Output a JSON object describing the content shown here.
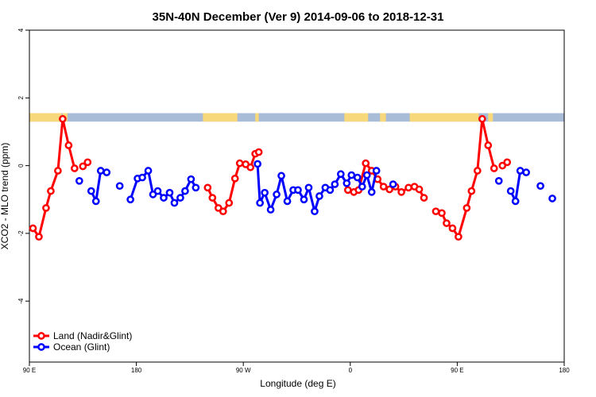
{
  "chart_data": {
    "type": "line",
    "title": "35N-40N December (Ver 9)   2014-09-06 to 2018-12-31",
    "xlabel": "Longitude (deg E)",
    "ylabel": "XCO2 - MLO trend (ppm)",
    "xlim": [
      90,
      540
    ],
    "ylim": [
      -5.8,
      4.0
    ],
    "x_ticks": [
      {
        "value": 90,
        "label": "90 E"
      },
      {
        "value": 180,
        "label": "180"
      },
      {
        "value": 270,
        "label": "90 W"
      },
      {
        "value": 360,
        "label": "0"
      },
      {
        "value": 450,
        "label": "90 E"
      },
      {
        "value": 540,
        "label": "180"
      }
    ],
    "y_ticks": [
      {
        "value": 4,
        "label": "4"
      },
      {
        "value": 2,
        "label": "2"
      },
      {
        "value": 0,
        "label": "0"
      },
      {
        "value": -2,
        "label": "-2"
      },
      {
        "value": -4,
        "label": "-4"
      }
    ],
    "legend_position": "bottom-left",
    "map_band": {
      "y_range": [
        1.3,
        1.55
      ],
      "ocean_color": "#a8bcd8",
      "land_color": "#f7d87a",
      "land_segments": [
        [
          90,
          117
        ],
        [
          105,
          117
        ],
        [
          118,
          122
        ],
        [
          236,
          265
        ],
        [
          280,
          283
        ],
        [
          355,
          375
        ],
        [
          385,
          390
        ],
        [
          410,
          468
        ],
        [
          462,
          468
        ],
        [
          476,
          480
        ]
      ]
    },
    "series": [
      {
        "name": "Land (Nadir&Glint)",
        "color": "#ff0000",
        "segments": [
          [
            [
              93,
              -1.85
            ],
            [
              98,
              -2.1
            ],
            [
              104,
              -1.25
            ],
            [
              108,
              -0.75
            ],
            [
              114,
              -0.15
            ],
            [
              118,
              1.38
            ],
            [
              123,
              0.6
            ],
            [
              128,
              -0.08
            ]
          ],
          [
            [
              135,
              -0.02
            ],
            [
              139,
              0.1
            ]
          ],
          [
            [
              240,
              -0.65
            ],
            [
              244,
              -0.95
            ],
            [
              249,
              -1.25
            ],
            [
              253,
              -1.35
            ],
            [
              258,
              -1.1
            ],
            [
              263,
              -0.38
            ],
            [
              267,
              0.07
            ],
            [
              272,
              0.04
            ],
            [
              276,
              -0.05
            ],
            [
              280,
              0.35
            ],
            [
              283,
              0.4
            ]
          ],
          [
            [
              358,
              -0.72
            ],
            [
              363,
              -0.78
            ],
            [
              367,
              -0.72
            ],
            [
              373,
              0.07
            ],
            [
              378,
              -0.15
            ],
            [
              383,
              -0.4
            ],
            [
              388,
              -0.62
            ],
            [
              393,
              -0.7
            ],
            [
              398,
              -0.62
            ],
            [
              403,
              -0.78
            ],
            [
              409,
              -0.65
            ],
            [
              414,
              -0.62
            ],
            [
              418,
              -0.7
            ],
            [
              422,
              -0.95
            ]
          ],
          [
            [
              432,
              -1.35
            ],
            [
              437,
              -1.4
            ],
            [
              441,
              -1.7
            ],
            [
              446,
              -1.85
            ],
            [
              451,
              -2.1
            ],
            [
              458,
              -1.25
            ],
            [
              462,
              -0.75
            ],
            [
              467,
              -0.15
            ],
            [
              471,
              1.38
            ],
            [
              476,
              0.6
            ],
            [
              481,
              -0.08
            ]
          ],
          [
            [
              488,
              0.0
            ],
            [
              492,
              0.1
            ]
          ]
        ]
      },
      {
        "name": "Ocean (Glint)",
        "color": "#0000ff",
        "segments": [
          [
            [
              132,
              -0.45
            ]
          ],
          [
            [
              142,
              -0.75
            ],
            [
              146,
              -1.05
            ],
            [
              150,
              -0.15
            ],
            [
              155,
              -0.2
            ]
          ],
          [
            [
              166,
              -0.6
            ]
          ],
          [
            [
              175,
              -1.0
            ],
            [
              181,
              -0.38
            ],
            [
              185,
              -0.35
            ],
            [
              190,
              -0.15
            ],
            [
              194,
              -0.85
            ],
            [
              198,
              -0.75
            ],
            [
              203,
              -0.95
            ],
            [
              208,
              -0.8
            ],
            [
              212,
              -1.1
            ],
            [
              217,
              -0.95
            ],
            [
              221,
              -0.75
            ],
            [
              226,
              -0.4
            ],
            [
              230,
              -0.65
            ]
          ],
          [
            [
              282,
              0.05
            ],
            [
              284,
              -1.1
            ],
            [
              288,
              -0.8
            ],
            [
              293,
              -1.3
            ],
            [
              298,
              -0.85
            ],
            [
              302,
              -0.3
            ],
            [
              307,
              -1.05
            ],
            [
              312,
              -0.72
            ],
            [
              316,
              -0.72
            ],
            [
              321,
              -1.0
            ],
            [
              325,
              -0.65
            ],
            [
              330,
              -1.35
            ],
            [
              334,
              -0.9
            ],
            [
              339,
              -0.65
            ],
            [
              343,
              -0.72
            ],
            [
              347,
              -0.55
            ],
            [
              352,
              -0.25
            ],
            [
              357,
              -0.52
            ],
            [
              361,
              -0.28
            ],
            [
              366,
              -0.35
            ],
            [
              370,
              -0.62
            ],
            [
              374,
              -0.28
            ],
            [
              378,
              -0.78
            ],
            [
              382,
              -0.15
            ]
          ],
          [
            [
              396,
              -0.55
            ]
          ],
          [
            [
              485,
              -0.45
            ]
          ],
          [
            [
              495,
              -0.75
            ],
            [
              499,
              -1.05
            ],
            [
              503,
              -0.15
            ],
            [
              508,
              -0.2
            ]
          ],
          [
            [
              520,
              -0.6
            ]
          ],
          [
            [
              530,
              -0.97
            ]
          ]
        ]
      }
    ]
  }
}
